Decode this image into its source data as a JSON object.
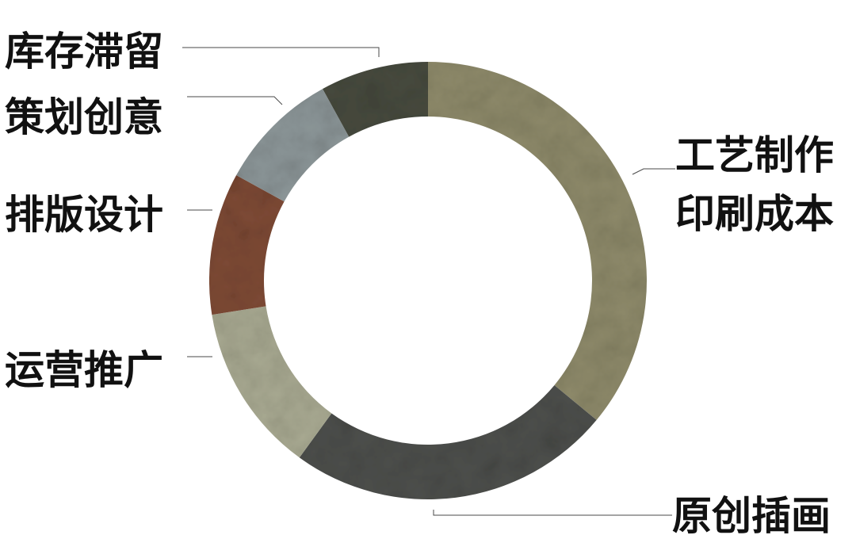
{
  "chart_data": {
    "type": "pie",
    "variant": "donut",
    "title": "",
    "legend": "none",
    "slices": [
      {
        "label": "工艺制作 印刷成本",
        "lines": [
          "工艺制作",
          "印刷成本"
        ],
        "value": 36,
        "color": "#8e8a6a",
        "texture": "olive-slate"
      },
      {
        "label": "原创插画",
        "lines": [
          "原创插画"
        ],
        "value": 24,
        "color": "#4d4f4c",
        "texture": "dark-slate"
      },
      {
        "label": "运营推广",
        "lines": [
          "运营推广"
        ],
        "value": 12.5,
        "color": "#a9aa92",
        "texture": "sage-slate"
      },
      {
        "label": "排版设计",
        "lines": [
          "排版设计"
        ],
        "value": 10.5,
        "color": "#7e4a35",
        "texture": "rust-slate"
      },
      {
        "label": "策划创意",
        "lines": [
          "策划创意"
        ],
        "value": 9,
        "color": "#8c9698",
        "texture": "grey-slate"
      },
      {
        "label": "库存滞留",
        "lines": [
          "库存滞留"
        ],
        "value": 8,
        "color": "#474a3e",
        "texture": "moss-slate"
      }
    ]
  }
}
